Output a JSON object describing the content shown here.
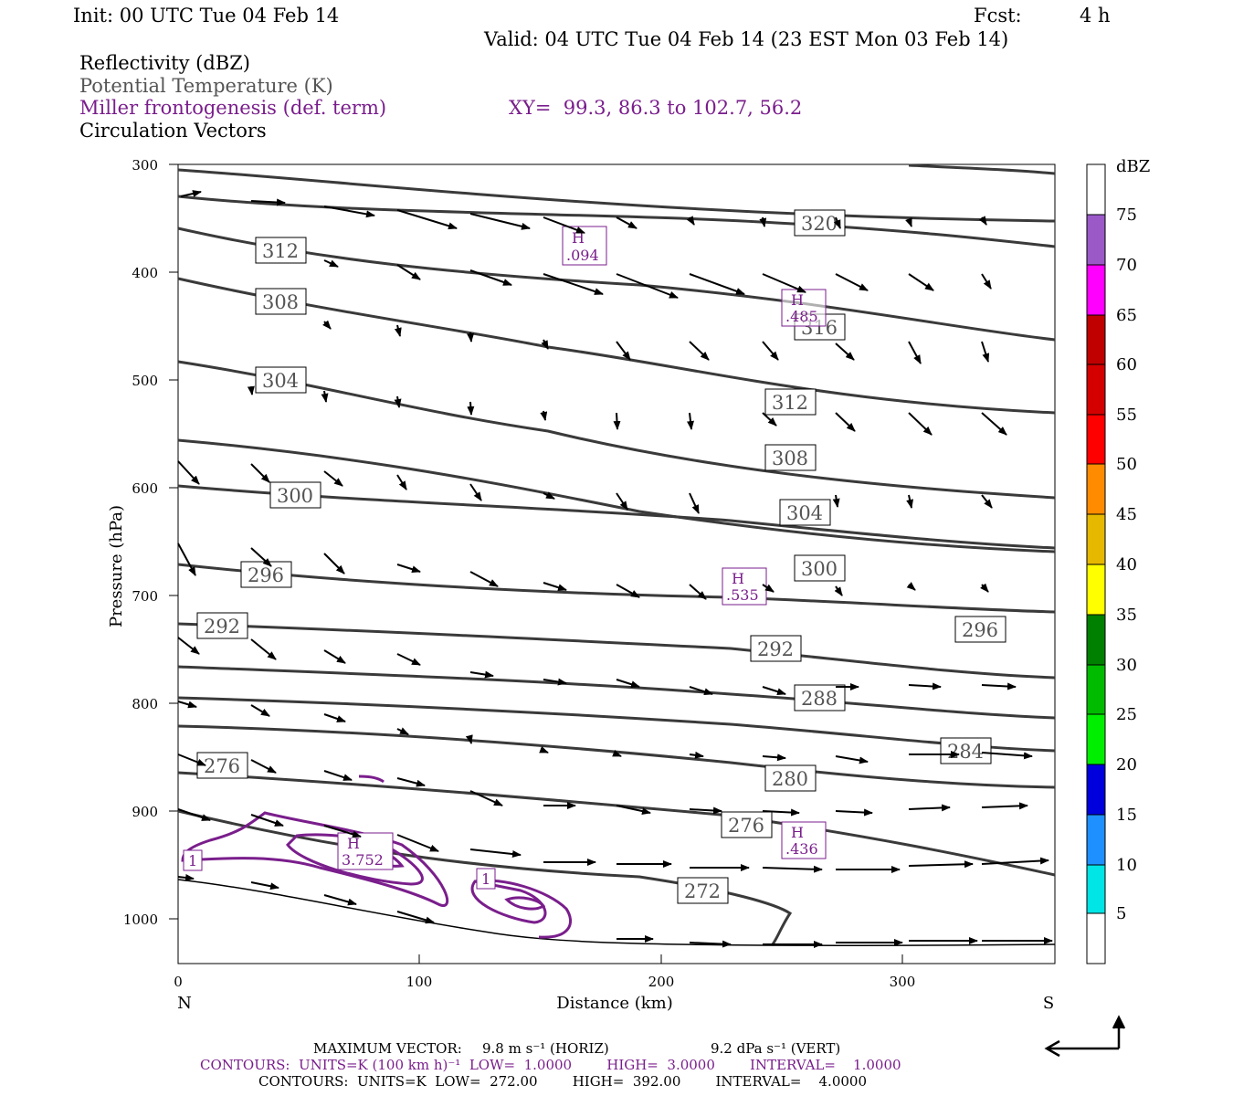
{
  "header": {
    "init": "Init: 00 UTC Tue 04 Feb 14",
    "fcst_label": "Fcst:",
    "fcst_value": "4 h",
    "valid": "Valid: 04 UTC Tue 04 Feb 14 (23 EST Mon 03 Feb 14)",
    "field1": "Reflectivity (dBZ)",
    "field2": "Potential Temperature (K)",
    "field3": "Miller frontogenesis (def. term)",
    "xy": "XY=  99.3, 86.3 to 102.7, 56.2",
    "field4": "Circulation Vectors"
  },
  "axes": {
    "ylabel": "Pressure (hPa)",
    "xlabel": "Distance (km)",
    "left_end": "N",
    "right_end": "S",
    "yticks": [
      "300",
      "400",
      "500",
      "600",
      "700",
      "800",
      "900",
      "1000"
    ],
    "xticks": [
      "0",
      "100",
      "200",
      "300"
    ]
  },
  "colorbar": {
    "unit": "dBZ",
    "labels": [
      "75",
      "70",
      "65",
      "60",
      "55",
      "50",
      "45",
      "40",
      "35",
      "30",
      "25",
      "20",
      "15",
      "10",
      "5"
    ],
    "colors": [
      "#ffffff",
      "#9b59c8",
      "#ff00ff",
      "#c00000",
      "#d40000",
      "#ff0000",
      "#ff8c00",
      "#e6b800",
      "#ffff00",
      "#008000",
      "#00bb00",
      "#00ee00",
      "#0000dd",
      "#1e90ff",
      "#00e5e5",
      "#ffffff"
    ]
  },
  "theta_labels": [
    "320",
    "312",
    "316",
    "308",
    "312",
    "304",
    "308",
    "300",
    "304",
    "296",
    "300",
    "292",
    "296",
    "292",
    "288",
    "276",
    "284",
    "280",
    "276",
    "272"
  ],
  "front_labels": {
    "h1_letter": "H",
    "h1_value": ".094",
    "h2_letter": "H",
    "h2_value": ".485",
    "h3_letter": "H",
    "h3_value": ".535",
    "h4_letter": "H",
    "h4_value": "3.752",
    "h5_letter": "H",
    "h5_value": ".436",
    "c1": "1",
    "c2": "1"
  },
  "footer": {
    "vector_label": "MAXIMUM VECTOR:",
    "vector_horiz": "9.8 m s⁻¹ (HORIZ)",
    "vector_vert": "9.2 dPa s⁻¹ (VERT)",
    "contours_purple": "CONTOURS:  UNITS=K (100 km h)⁻¹  LOW=  1.0000        HIGH=  3.0000        INTERVAL=    1.0000",
    "contours_black": "CONTOURS:  UNITS=K  LOW=  272.00        HIGH=  392.00        INTERVAL=    4.0000"
  }
}
